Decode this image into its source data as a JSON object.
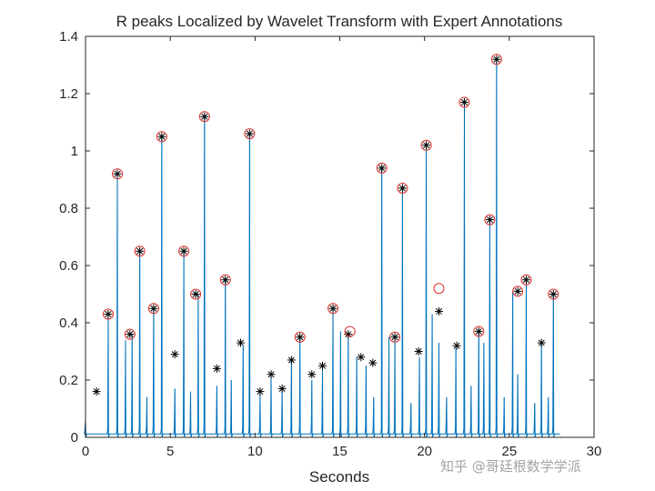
{
  "chart_data": {
    "type": "line",
    "title": "R peaks Localized by Wavelet Transform with Expert Annotations",
    "xlabel": "Seconds",
    "ylabel": "",
    "xlim": [
      0,
      30
    ],
    "ylim": [
      0,
      1.4
    ],
    "xticks": [
      "0",
      "5",
      "10",
      "15",
      "20",
      "25",
      "30"
    ],
    "yticks": [
      "0",
      "0.2",
      "0.4",
      "0.6",
      "0.8",
      "1",
      "1.2",
      "1.4"
    ],
    "grid": false,
    "series": [
      {
        "marker": "line",
        "color": "#0072BD",
        "x": [
          0.0,
          1.34,
          1.88,
          2.36,
          2.75,
          3.2,
          3.62,
          4.02,
          4.5,
          5.27,
          5.8,
          6.2,
          6.65,
          7.02,
          7.75,
          8.25,
          8.6,
          9.3,
          9.68,
          10.3,
          10.95,
          11.6,
          12.15,
          12.65,
          13.35,
          13.98,
          14.6,
          15.05,
          15.5,
          16.0,
          16.55,
          17.0,
          17.48,
          17.9,
          18.25,
          18.7,
          19.2,
          19.7,
          20.1,
          20.45,
          20.85,
          21.3,
          21.85,
          22.35,
          22.75,
          23.2,
          23.5,
          23.85,
          24.25,
          24.7,
          25.2,
          25.5,
          26.0,
          26.5,
          26.9,
          27.3,
          27.6
        ],
        "values": [
          0.06,
          0.43,
          0.92,
          0.34,
          0.36,
          0.65,
          0.14,
          0.45,
          1.05,
          0.17,
          0.65,
          0.16,
          0.5,
          1.12,
          0.18,
          0.55,
          0.2,
          0.32,
          1.06,
          0.15,
          0.22,
          0.17,
          0.27,
          0.35,
          0.2,
          0.24,
          0.45,
          0.37,
          0.36,
          0.28,
          0.25,
          0.14,
          0.94,
          0.35,
          0.34,
          0.87,
          0.12,
          0.28,
          1.02,
          0.43,
          0.33,
          0.14,
          0.31,
          1.17,
          0.18,
          0.37,
          0.33,
          0.76,
          1.32,
          0.14,
          0.51,
          0.22,
          0.55,
          0.12,
          0.33,
          0.14,
          0.5
        ]
      },
      {
        "marker": "asterisk",
        "color": "#000000",
        "x": [
          0.65,
          1.34,
          1.88,
          2.62,
          3.2,
          4.02,
          4.5,
          5.27,
          5.8,
          6.5,
          7.02,
          7.75,
          8.25,
          9.15,
          9.68,
          10.3,
          10.95,
          11.6,
          12.15,
          12.65,
          13.35,
          13.98,
          14.6,
          15.5,
          16.25,
          16.95,
          17.48,
          18.25,
          18.7,
          19.65,
          20.1,
          20.85,
          21.9,
          22.35,
          23.2,
          23.85,
          24.25,
          25.5,
          26.0,
          26.9,
          27.6
        ],
        "values": [
          0.16,
          0.43,
          0.92,
          0.36,
          0.65,
          0.45,
          1.05,
          0.29,
          0.65,
          0.5,
          1.12,
          0.24,
          0.55,
          0.33,
          1.06,
          0.16,
          0.22,
          0.17,
          0.27,
          0.35,
          0.22,
          0.25,
          0.45,
          0.36,
          0.28,
          0.26,
          0.94,
          0.35,
          0.87,
          0.3,
          1.02,
          0.44,
          0.32,
          1.17,
          0.37,
          0.76,
          1.32,
          0.51,
          0.55,
          0.33,
          0.5
        ]
      },
      {
        "marker": "circle",
        "color": "#D9302B",
        "x": [
          1.34,
          1.88,
          2.62,
          3.2,
          4.02,
          4.5,
          5.8,
          6.5,
          7.02,
          8.25,
          9.68,
          12.65,
          14.6,
          15.6,
          17.48,
          18.25,
          18.7,
          20.1,
          20.85,
          22.35,
          23.2,
          23.85,
          24.25,
          25.5,
          26.0,
          27.6
        ],
        "values": [
          0.43,
          0.92,
          0.36,
          0.65,
          0.45,
          1.05,
          0.65,
          0.5,
          1.12,
          0.55,
          1.06,
          0.35,
          0.45,
          0.37,
          0.94,
          0.35,
          0.87,
          1.02,
          0.52,
          1.17,
          0.37,
          0.76,
          1.32,
          0.51,
          0.55,
          0.5
        ]
      }
    ]
  },
  "watermark": "知乎 @哥廷根数学学派"
}
